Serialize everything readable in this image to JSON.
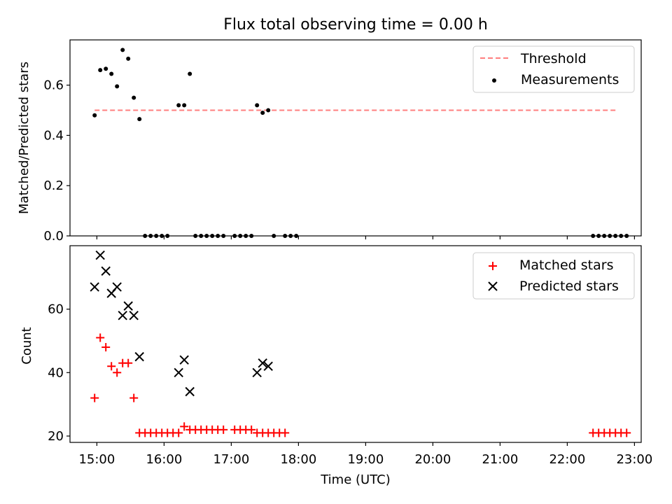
{
  "chart_data": [
    {
      "type": "scatter",
      "title": "Flux total observing time = 0.00 h",
      "xlabel": "",
      "ylabel": "Matched/Predicted stars",
      "xlim": [
        "14:36",
        "23:06"
      ],
      "ylim": [
        0,
        0.78
      ],
      "yticks": [
        0.0,
        0.2,
        0.4,
        0.6
      ],
      "ytick_labels": [
        "0.0",
        "0.2",
        "0.4",
        "0.6"
      ],
      "grid": false,
      "legend_position": "top-right",
      "colors": {
        "threshold": "#ff7f7f",
        "measurements": "#000000"
      },
      "series": [
        {
          "name": "Threshold",
          "style": "dashed-line",
          "x": [
            "14:58",
            "22:45"
          ],
          "y": [
            0.5,
            0.5
          ]
        },
        {
          "name": "Measurements",
          "style": "dot",
          "x": [
            "14:58",
            "15:03",
            "15:08",
            "15:13",
            "15:18",
            "15:23",
            "15:28",
            "15:33",
            "15:38",
            "15:43",
            "15:48",
            "15:53",
            "15:58",
            "16:03",
            "16:13",
            "16:18",
            "16:23",
            "16:28",
            "16:33",
            "16:38",
            "16:43",
            "16:48",
            "16:53",
            "17:03",
            "17:08",
            "17:13",
            "17:18",
            "17:23",
            "17:28",
            "17:33",
            "17:38",
            "17:48",
            "17:53",
            "17:58",
            "22:23",
            "22:28",
            "22:33",
            "22:38",
            "22:43",
            "22:48",
            "22:53"
          ],
          "y": [
            0.48,
            0.66,
            0.665,
            0.645,
            0.595,
            0.74,
            0.705,
            0.55,
            0.465,
            0,
            0,
            0,
            0,
            0,
            0.52,
            0.52,
            0.645,
            0,
            0,
            0,
            0,
            0,
            0,
            0,
            0,
            0,
            0,
            0.52,
            0.49,
            0.5,
            0,
            0,
            0,
            0,
            0,
            0,
            0,
            0,
            0,
            0,
            0
          ]
        }
      ]
    },
    {
      "type": "scatter",
      "title": "",
      "xlabel": "Time (UTC)",
      "ylabel": "Count",
      "xlim": [
        "14:36",
        "23:06"
      ],
      "ylim": [
        18,
        80
      ],
      "xticks": [
        "15:00",
        "16:00",
        "17:00",
        "18:00",
        "19:00",
        "20:00",
        "21:00",
        "22:00",
        "23:00"
      ],
      "yticks": [
        20,
        40,
        60
      ],
      "ytick_labels": [
        "20",
        "40",
        "60"
      ],
      "grid": false,
      "legend_position": "top-right",
      "colors": {
        "matched": "#ff0000",
        "predicted": "#000000"
      },
      "series": [
        {
          "name": "Matched stars",
          "style": "plus",
          "x": [
            "14:58",
            "15:03",
            "15:08",
            "15:13",
            "15:18",
            "15:23",
            "15:28",
            "15:33",
            "15:38",
            "15:43",
            "15:48",
            "15:53",
            "15:58",
            "16:03",
            "16:08",
            "16:13",
            "16:18",
            "16:23",
            "16:28",
            "16:33",
            "16:38",
            "16:43",
            "16:48",
            "16:53",
            "17:03",
            "17:08",
            "17:13",
            "17:18",
            "17:23",
            "17:28",
            "17:33",
            "17:38",
            "17:43",
            "17:48",
            "22:23",
            "22:28",
            "22:33",
            "22:38",
            "22:43",
            "22:48",
            "22:53"
          ],
          "y": [
            32,
            51,
            48,
            42,
            40,
            43,
            43,
            32,
            21,
            21,
            21,
            21,
            21,
            21,
            21,
            21,
            23,
            22,
            22,
            22,
            22,
            22,
            22,
            22,
            22,
            22,
            22,
            22,
            21,
            21,
            21,
            21,
            21,
            21,
            21,
            21,
            21,
            21,
            21,
            21,
            21
          ]
        },
        {
          "name": "Predicted stars",
          "style": "x",
          "x": [
            "14:58",
            "15:03",
            "15:08",
            "15:13",
            "15:18",
            "15:23",
            "15:28",
            "15:33",
            "15:38",
            "16:13",
            "16:18",
            "16:23",
            "17:23",
            "17:28",
            "17:33"
          ],
          "y": [
            67,
            77,
            72,
            65,
            67,
            58,
            61,
            58,
            45,
            40,
            44,
            34,
            40,
            43,
            42
          ]
        }
      ]
    }
  ]
}
